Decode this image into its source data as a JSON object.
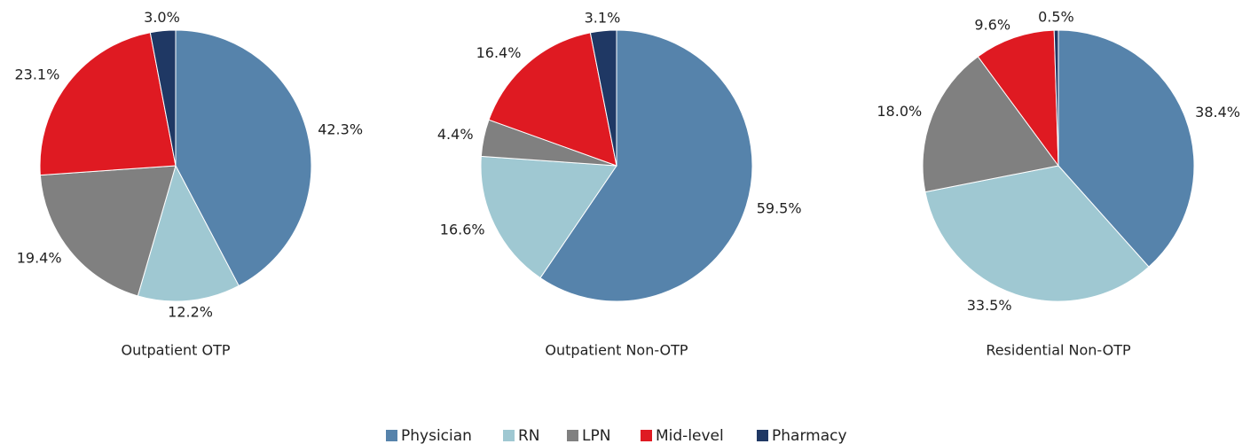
{
  "legend": {
    "categories": [
      "Physician",
      "RN",
      "LPN",
      "Mid-level",
      "Pharmacy"
    ],
    "colors": [
      "#5683ab",
      "#9fc8d2",
      "#808080",
      "#df1a22",
      "#1f3864"
    ]
  },
  "chart_data": [
    {
      "type": "pie",
      "title": "Outpatient OTP",
      "values": [
        42.3,
        12.2,
        19.4,
        23.1,
        3.0
      ],
      "value_labels": [
        "42.3%",
        "12.2%",
        "19.4%",
        "23.1%",
        "3.0%"
      ]
    },
    {
      "type": "pie",
      "title": "Outpatient Non-OTP",
      "values": [
        59.5,
        16.6,
        4.4,
        16.4,
        3.1
      ],
      "value_labels": [
        "59.5%",
        "16.6%",
        "4.4%",
        "16.4%",
        "3.1%"
      ]
    },
    {
      "type": "pie",
      "title": "Residential Non-OTP",
      "values": [
        38.4,
        33.5,
        18.0,
        9.6,
        0.5
      ],
      "value_labels": [
        "38.4%",
        "33.5%",
        "18.0%",
        "9.6%",
        "0.5%"
      ]
    }
  ]
}
